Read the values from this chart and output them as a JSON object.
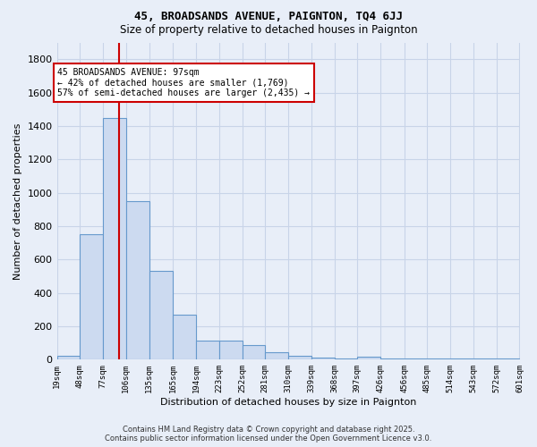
{
  "title": "45, BROADSANDS AVENUE, PAIGNTON, TQ4 6JJ",
  "subtitle": "Size of property relative to detached houses in Paignton",
  "xlabel": "Distribution of detached houses by size in Paignton",
  "ylabel": "Number of detached properties",
  "bar_edges": [
    19,
    48,
    77,
    106,
    135,
    165,
    194,
    223,
    252,
    281,
    310,
    339,
    368,
    397,
    426,
    456,
    485,
    514,
    543,
    572,
    601
  ],
  "bar_heights": [
    25,
    750,
    1450,
    950,
    530,
    270,
    115,
    115,
    90,
    45,
    25,
    15,
    5,
    20,
    5,
    5,
    5,
    5,
    5,
    5
  ],
  "bar_color": "#ccdaf0",
  "bar_edge_color": "#6699cc",
  "grid_color": "#c8d4e8",
  "background_color": "#e8eef8",
  "vline_x": 97,
  "vline_color": "#cc0000",
  "annotation_text": "45 BROADSANDS AVENUE: 97sqm\n← 42% of detached houses are smaller (1,769)\n57% of semi-detached houses are larger (2,435) →",
  "annotation_box_color": "#ffffff",
  "annotation_box_edge": "#cc0000",
  "footer_line1": "Contains HM Land Registry data © Crown copyright and database right 2025.",
  "footer_line2": "Contains public sector information licensed under the Open Government Licence v3.0.",
  "ylim": [
    0,
    1900
  ],
  "tick_labels": [
    "19sqm",
    "48sqm",
    "77sqm",
    "106sqm",
    "135sqm",
    "165sqm",
    "194sqm",
    "223sqm",
    "252sqm",
    "281sqm",
    "310sqm",
    "339sqm",
    "368sqm",
    "397sqm",
    "426sqm",
    "456sqm",
    "485sqm",
    "514sqm",
    "543sqm",
    "572sqm",
    "601sqm"
  ],
  "yticks": [
    0,
    200,
    400,
    600,
    800,
    1000,
    1200,
    1400,
    1600,
    1800
  ]
}
